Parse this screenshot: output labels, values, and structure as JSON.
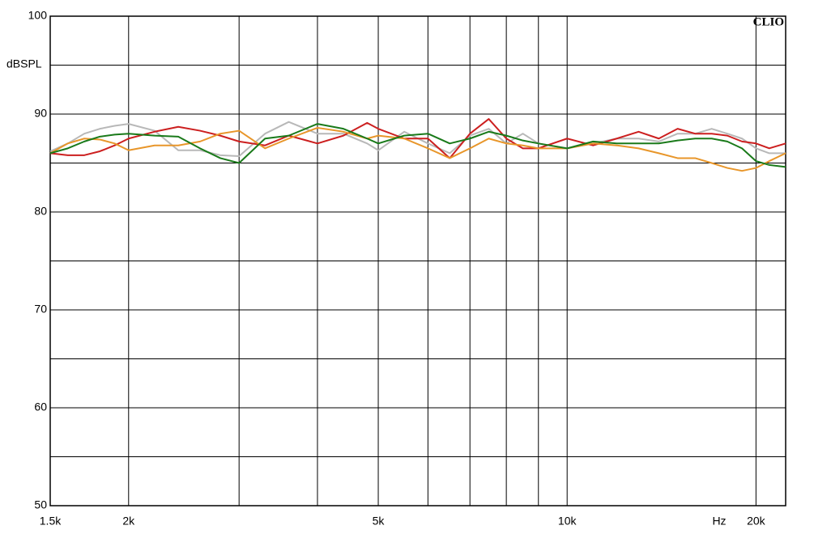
{
  "chart_data": {
    "type": "line",
    "ylabel": "dBSPL",
    "xlabel": "Hz",
    "watermark": "CLIO",
    "xscale": "log",
    "grid": true,
    "xlim": [
      1500,
      22300
    ],
    "ylim": [
      50,
      100
    ],
    "xticks": [
      {
        "value": 1500,
        "label": "1.5k"
      },
      {
        "value": 2000,
        "label": "2k"
      },
      {
        "value": 5000,
        "label": "5k"
      },
      {
        "value": 10000,
        "label": "10k"
      },
      {
        "value": 20000,
        "label": "20k"
      }
    ],
    "xminor": [
      3000,
      4000,
      6000,
      7000,
      8000,
      9000
    ],
    "yticks": [
      50,
      60,
      70,
      80,
      90,
      100
    ],
    "yminor": [
      55,
      65,
      75,
      85,
      95
    ],
    "x": [
      1500,
      1600,
      1700,
      1800,
      1900,
      2000,
      2200,
      2400,
      2600,
      2800,
      3000,
      3300,
      3600,
      4000,
      4400,
      4800,
      5000,
      5500,
      6000,
      6500,
      7000,
      7500,
      8000,
      8500,
      9000,
      10000,
      11000,
      12000,
      13000,
      14000,
      15000,
      16000,
      17000,
      18000,
      19000,
      20000,
      21000,
      22300
    ],
    "series": [
      {
        "color": "#b8b8b8",
        "values": [
          86.2,
          87,
          88,
          88.5,
          88.8,
          89,
          88.3,
          86.3,
          86.3,
          85.8,
          85.7,
          88,
          89.2,
          88,
          88,
          87,
          86.3,
          88.2,
          87,
          86,
          87.8,
          88.5,
          87,
          88,
          87,
          86.5,
          87,
          87.5,
          87.5,
          87.2,
          88,
          88,
          88.5,
          88,
          87.5,
          86.5,
          86,
          86
        ]
      },
      {
        "color": "#cc1f1f",
        "values": [
          86,
          85.8,
          85.8,
          86.2,
          86.8,
          87.5,
          88.2,
          88.7,
          88.3,
          87.8,
          87.2,
          86.8,
          87.8,
          87,
          87.8,
          89.1,
          88.5,
          87.5,
          87.5,
          85.5,
          88,
          89.5,
          87.5,
          86.5,
          86.5,
          87.5,
          86.8,
          87.5,
          88.2,
          87.5,
          88.5,
          88,
          88,
          87.8,
          87.2,
          87,
          86.5,
          87
        ]
      },
      {
        "color": "#e8962a",
        "values": [
          86,
          87,
          87.5,
          87.4,
          87,
          86.3,
          86.8,
          86.8,
          87.2,
          88,
          88.3,
          86.5,
          87.5,
          88.6,
          88.2,
          87.5,
          87.8,
          87.5,
          86.5,
          85.5,
          86.5,
          87.5,
          87,
          86.8,
          86.5,
          86.5,
          87,
          86.8,
          86.5,
          86,
          85.5,
          85.5,
          85,
          84.5,
          84.2,
          84.5,
          85.2,
          86
        ]
      },
      {
        "color": "#1a7a1a",
        "values": [
          86,
          86.5,
          87.2,
          87.7,
          87.9,
          88,
          87.8,
          87.7,
          86.5,
          85.5,
          85,
          87.5,
          87.8,
          89,
          88.5,
          87.5,
          87,
          87.8,
          88,
          87,
          87.5,
          88.2,
          87.8,
          87.3,
          87,
          86.5,
          87.2,
          87,
          87,
          87,
          87.3,
          87.5,
          87.5,
          87.2,
          86.5,
          85.2,
          84.8,
          84.6
        ]
      }
    ]
  }
}
